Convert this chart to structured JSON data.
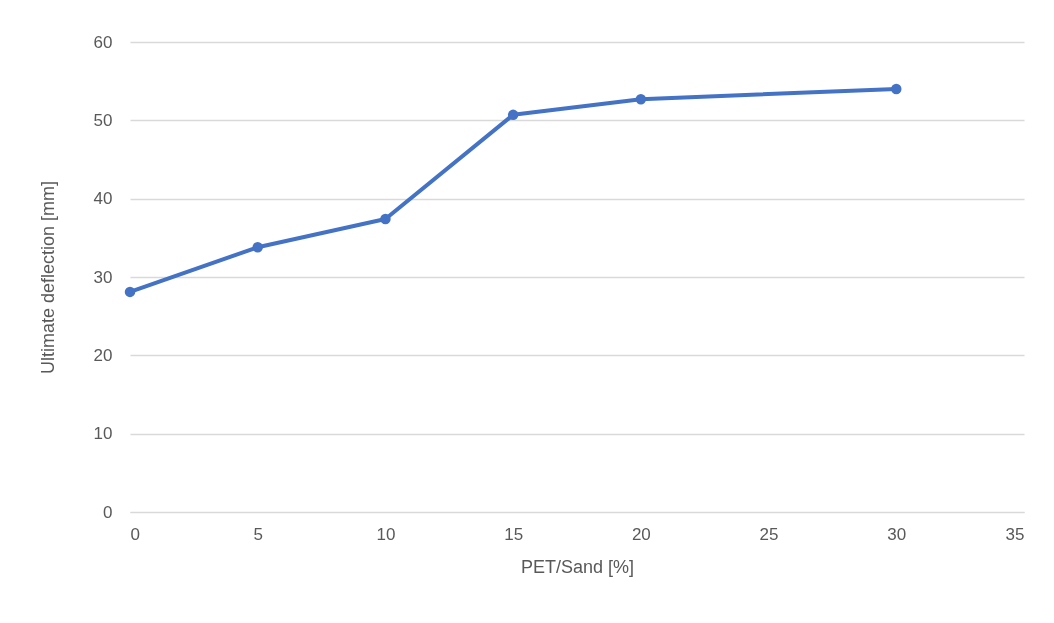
{
  "chart_data": {
    "type": "line",
    "xlabel": "PET/Sand [%]",
    "ylabel": "Ultimate deflection [mm]",
    "x": [
      0,
      5,
      10,
      15,
      20,
      30
    ],
    "series": [
      {
        "color": "#4472c4",
        "values": [
          28.1,
          33.8,
          37.4,
          50.7,
          52.7,
          54.0
        ]
      }
    ],
    "xlim": [
      0,
      35
    ],
    "xticks": [
      0,
      5,
      10,
      15,
      20,
      25,
      30,
      35
    ],
    "ylim": [
      0,
      60
    ],
    "yticks": [
      0,
      10,
      20,
      30,
      40,
      50,
      60
    ],
    "grid": "y",
    "marker": "circle",
    "line_style": "solid"
  }
}
